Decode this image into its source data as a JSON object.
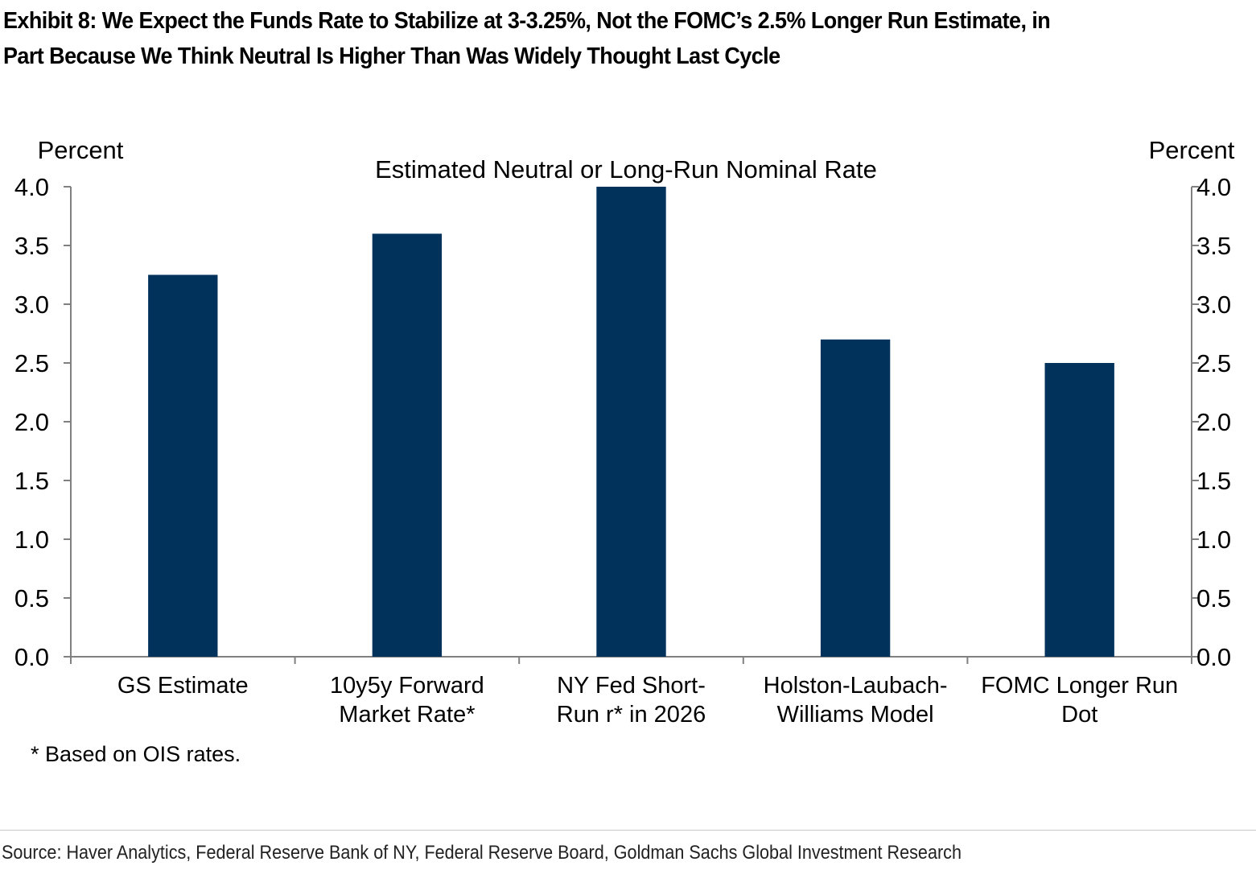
{
  "title_lines": [
    "Exhibit 8: We Expect the Funds Rate to Stabilize at 3-3.25%, Not the FOMC’s 2.5% Longer Run Estimate, in",
    "Part Because We Think Neutral Is Higher Than Was Widely Thought Last Cycle"
  ],
  "footnote": "* Based on OIS rates.",
  "source": "Source: Haver Analytics, Federal Reserve Bank of NY, Federal Reserve Board, Goldman Sachs Global Investment Research",
  "chart_data": {
    "type": "bar",
    "title": "Estimated Neutral or Long-Run Nominal Rate",
    "ylabel_left": "Percent",
    "ylabel_right": "Percent",
    "ylim": [
      0,
      4.0
    ],
    "yticks": [
      "0.0",
      "0.5",
      "1.0",
      "1.5",
      "2.0",
      "2.5",
      "3.0",
      "3.5",
      "4.0"
    ],
    "categories": [
      [
        "GS Estimate"
      ],
      [
        "10y5y Forward",
        "Market Rate*"
      ],
      [
        "NY Fed Short-",
        "Run r* in 2026"
      ],
      [
        "Holston-Laubach-",
        "Williams Model"
      ],
      [
        "FOMC Longer Run",
        "Dot"
      ]
    ],
    "series": [
      {
        "values": [
          3.25,
          3.6,
          4.0,
          2.7,
          2.5
        ]
      }
    ],
    "bar_color": "#00325c",
    "grid": false
  }
}
